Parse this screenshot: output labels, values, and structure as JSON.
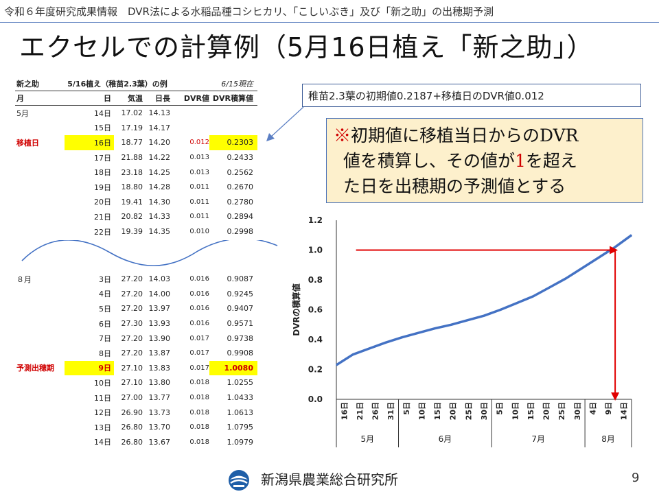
{
  "header": {
    "breadcrumb": "令和６年度研究成果情報　DVR法による水稲品種コシヒカリ、「こしいぶき」及び「新之助」の出穂期予測"
  },
  "title": "エクセルでの計算例（5月16日植え「新之助」）",
  "table": {
    "variety": "新之助",
    "condition": "5/16植え（稚苗2.3葉）の例",
    "as_of": "6/15現在",
    "headers": [
      "月",
      "日",
      "気温",
      "日長",
      "DVR値",
      "DVR積算値"
    ],
    "top_rows": [
      {
        "label": "5月",
        "day": "14日",
        "temp": "17.02",
        "daylen": "14.13",
        "dvr": "",
        "cum": ""
      },
      {
        "label": "",
        "day": "15日",
        "temp": "17.19",
        "daylen": "14.17",
        "dvr": "",
        "cum": ""
      },
      {
        "label": "移植日",
        "day": "16日",
        "temp": "18.77",
        "daylen": "14.20",
        "dvr": "0.012",
        "cum": "0.2303"
      },
      {
        "label": "",
        "day": "17日",
        "temp": "21.88",
        "daylen": "14.22",
        "dvr": "0.013",
        "cum": "0.2433"
      },
      {
        "label": "",
        "day": "18日",
        "temp": "23.18",
        "daylen": "14.25",
        "dvr": "0.013",
        "cum": "0.2562"
      },
      {
        "label": "",
        "day": "19日",
        "temp": "18.80",
        "daylen": "14.28",
        "dvr": "0.011",
        "cum": "0.2670"
      },
      {
        "label": "",
        "day": "20日",
        "temp": "19.41",
        "daylen": "14.30",
        "dvr": "0.011",
        "cum": "0.2780"
      },
      {
        "label": "",
        "day": "21日",
        "temp": "20.82",
        "daylen": "14.33",
        "dvr": "0.011",
        "cum": "0.2894"
      },
      {
        "label": "",
        "day": "22日",
        "temp": "19.39",
        "daylen": "14.35",
        "dvr": "0.010",
        "cum": "0.2998"
      }
    ],
    "bottom_rows": [
      {
        "label": "８月",
        "day": "3日",
        "temp": "27.20",
        "daylen": "14.03",
        "dvr": "0.016",
        "cum": "0.9087"
      },
      {
        "label": "",
        "day": "4日",
        "temp": "27.20",
        "daylen": "14.00",
        "dvr": "0.016",
        "cum": "0.9245"
      },
      {
        "label": "",
        "day": "5日",
        "temp": "27.20",
        "daylen": "13.97",
        "dvr": "0.016",
        "cum": "0.9407"
      },
      {
        "label": "",
        "day": "6日",
        "temp": "27.30",
        "daylen": "13.93",
        "dvr": "0.016",
        "cum": "0.9571"
      },
      {
        "label": "",
        "day": "7日",
        "temp": "27.20",
        "daylen": "13.90",
        "dvr": "0.017",
        "cum": "0.9738"
      },
      {
        "label": "",
        "day": "8日",
        "temp": "27.20",
        "daylen": "13.87",
        "dvr": "0.017",
        "cum": "0.9908"
      },
      {
        "label": "予測出穂期",
        "day": "9日",
        "temp": "27.10",
        "daylen": "13.83",
        "dvr": "0.017",
        "cum": "1.0080"
      },
      {
        "label": "",
        "day": "10日",
        "temp": "27.10",
        "daylen": "13.80",
        "dvr": "0.018",
        "cum": "1.0255"
      },
      {
        "label": "",
        "day": "11日",
        "temp": "27.00",
        "daylen": "13.77",
        "dvr": "0.018",
        "cum": "1.0433"
      },
      {
        "label": "",
        "day": "12日",
        "temp": "26.90",
        "daylen": "13.73",
        "dvr": "0.018",
        "cum": "1.0613"
      },
      {
        "label": "",
        "day": "13日",
        "temp": "26.80",
        "daylen": "13.70",
        "dvr": "0.018",
        "cum": "1.0795"
      },
      {
        "label": "",
        "day": "14日",
        "temp": "26.80",
        "daylen": "13.67",
        "dvr": "0.018",
        "cum": "1.0979"
      }
    ]
  },
  "callout": "稚苗2.3葉の初期値0.2187+移植日のDVR値0.012",
  "note": {
    "mark": "※",
    "line1": "初期値に移植当日からのDVR",
    "line2a": "値を積算し、その値が",
    "line2_one": "1",
    "line2b": "を超え",
    "line3": "た日を出穂期の予測値とする"
  },
  "chart_data": {
    "type": "line",
    "title": "",
    "ylabel": "DVRの積算値",
    "xlabel": "",
    "ylim": [
      0,
      1.2
    ],
    "yticks": [
      "0.0",
      "0.2",
      "0.4",
      "0.6",
      "0.8",
      "1.0",
      "1.2"
    ],
    "xtick_labels": [
      "16日",
      "21日",
      "26日",
      "31日",
      "5日",
      "10日",
      "15日",
      "20日",
      "25日",
      "30日",
      "5日",
      "10日",
      "15日",
      "20日",
      "25日",
      "30日",
      "4日",
      "9日",
      "14日"
    ],
    "month_labels": [
      "5月",
      "6月",
      "7月",
      "8月"
    ],
    "series": [
      {
        "name": "DVR積算値",
        "color": "#4472c4",
        "x": [
          0,
          5,
          10,
          15,
          20,
          25,
          30,
          35,
          40,
          45,
          50,
          55,
          60,
          65,
          70,
          75,
          80,
          85,
          90
        ],
        "values": [
          0.23,
          0.3,
          0.34,
          0.38,
          0.415,
          0.445,
          0.475,
          0.5,
          0.53,
          0.56,
          0.6,
          0.645,
          0.69,
          0.75,
          0.81,
          0.88,
          0.95,
          1.02,
          1.1
        ]
      }
    ],
    "annotations": {
      "threshold": 1.0,
      "predicted_day_x": 85,
      "arrow_color": "#e00000"
    }
  },
  "footer": {
    "org": "新潟県農業総合研究所",
    "page": "9"
  }
}
